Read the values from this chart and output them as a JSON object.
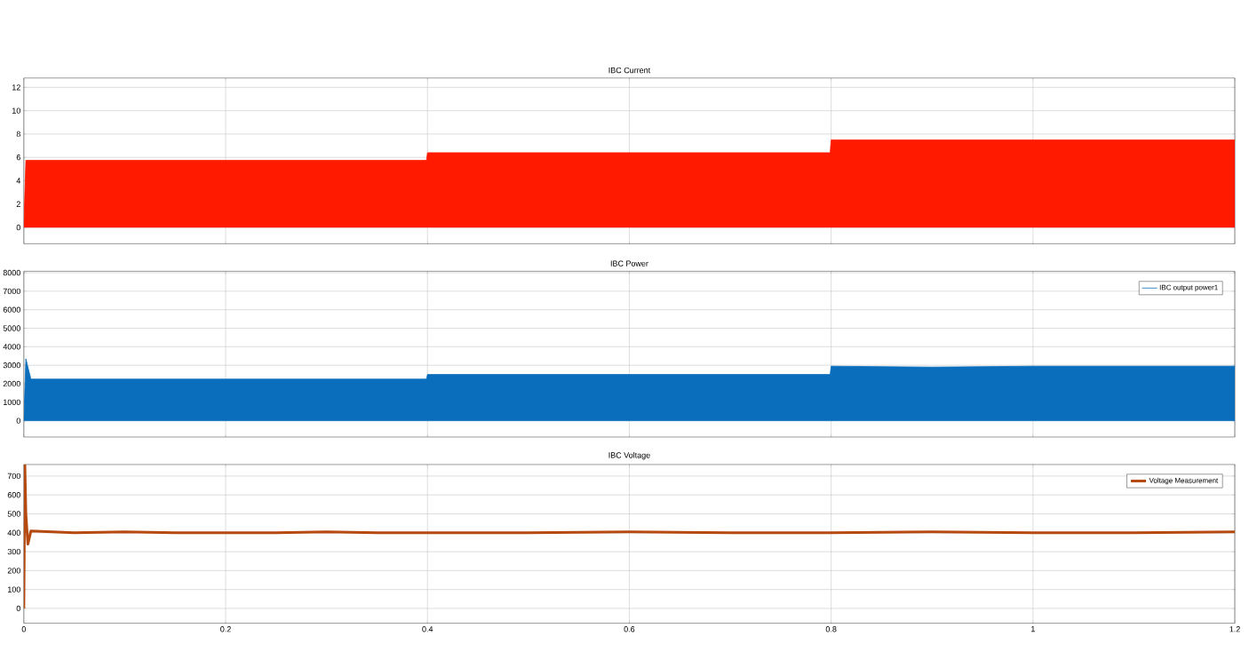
{
  "chart_data": [
    {
      "type": "area",
      "title": "IBC Current",
      "x": [
        0,
        0.002,
        0.1,
        0.2,
        0.3,
        0.399,
        0.4,
        0.6,
        0.799,
        0.8,
        1.0,
        1.2
      ],
      "series": [
        {
          "color": "#ff1a00",
          "values": [
            0,
            5.75,
            5.75,
            5.75,
            5.75,
            5.75,
            6.4,
            6.4,
            6.4,
            7.5,
            7.5,
            7.5
          ]
        }
      ],
      "xlim": [
        0,
        1.2
      ],
      "xticks": [
        0,
        0.2,
        0.4,
        0.6,
        0.8,
        1,
        1.2
      ],
      "ylim": [
        -1.4,
        12.8
      ],
      "yticks": [
        0,
        2,
        4,
        6,
        8,
        10,
        12
      ],
      "grid": true,
      "tick_labels": "y"
    },
    {
      "type": "area",
      "title": "IBC Power",
      "x": [
        0,
        0.002,
        0.007,
        0.1,
        0.2,
        0.3,
        0.399,
        0.4,
        0.5,
        0.6,
        0.7,
        0.799,
        0.8,
        0.9,
        1.0,
        1.1,
        1.2
      ],
      "series": [
        {
          "name": "IBC output power1",
          "color": "#0a6ebd",
          "values": [
            0,
            3350,
            2250,
            2250,
            2250,
            2250,
            2250,
            2500,
            2500,
            2500,
            2500,
            2500,
            2950,
            2900,
            2950,
            2950,
            2950
          ]
        }
      ],
      "xlim": [
        0,
        1.2
      ],
      "xticks": [
        0,
        0.2,
        0.4,
        0.6,
        0.8,
        1,
        1.2
      ],
      "ylim": [
        -880,
        8080
      ],
      "yticks": [
        0,
        1000,
        2000,
        3000,
        4000,
        5000,
        6000,
        7000,
        8000
      ],
      "grid": true,
      "legend": "top right",
      "tick_labels": "y"
    },
    {
      "type": "line",
      "title": "IBC Voltage",
      "x": [
        0,
        0.001,
        0.002,
        0.004,
        0.007,
        0.05,
        0.1,
        0.15,
        0.2,
        0.25,
        0.3,
        0.35,
        0.4,
        0.5,
        0.6,
        0.7,
        0.8,
        0.9,
        1.0,
        1.1,
        1.2
      ],
      "series": [
        {
          "name": "Voltage Measurement",
          "color": "#b5490f",
          "values": [
            0,
            761,
            500,
            340,
            410,
            400,
            405,
            400,
            400,
            400,
            405,
            400,
            400,
            400,
            405,
            400,
            400,
            405,
            400,
            400,
            405
          ]
        }
      ],
      "xlim": [
        0,
        1.2
      ],
      "xticks": [
        0,
        0.2,
        0.4,
        0.6,
        0.8,
        1,
        1.2
      ],
      "ylim": [
        -78,
        761
      ],
      "yticks": [
        0,
        100,
        200,
        300,
        400,
        500,
        600,
        700
      ],
      "grid": true,
      "legend": "top right"
    }
  ]
}
